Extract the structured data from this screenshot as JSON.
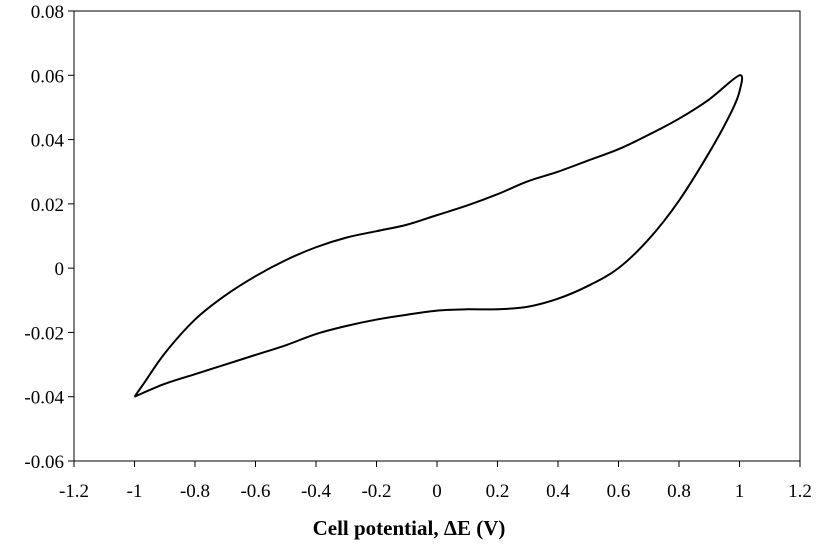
{
  "chart_data": {
    "type": "line",
    "title": "",
    "xlabel": "Cell potential, ΔE (V)",
    "ylabel": "",
    "xlim": [
      -1.2,
      1.2
    ],
    "ylim": [
      -0.06,
      0.08
    ],
    "x_ticks": [
      -1.2,
      -1,
      -0.8,
      -0.6,
      -0.4,
      -0.2,
      0,
      0.2,
      0.4,
      0.6,
      0.8,
      1,
      1.2
    ],
    "x_tick_labels": [
      "-1.2",
      "-1",
      "-0.8",
      "-0.6",
      "-0.4",
      "-0.2",
      "0",
      "0.2",
      "0.4",
      "0.6",
      "0.8",
      "1",
      "1.2"
    ],
    "y_ticks": [
      -0.06,
      -0.04,
      -0.02,
      0,
      0.02,
      0.04,
      0.06,
      0.08
    ],
    "y_tick_labels": [
      "-0.06",
      "-0.04",
      "-0.02",
      "0",
      "0.02",
      "0.04",
      "0.06",
      "0.08"
    ],
    "grid": false,
    "legend": "none",
    "series": [
      {
        "color": "#000000",
        "points": [
          [
            -1.0,
            -0.04
          ],
          [
            -0.9,
            -0.036
          ],
          [
            -0.8,
            -0.033
          ],
          [
            -0.7,
            -0.03
          ],
          [
            -0.6,
            -0.027
          ],
          [
            -0.5,
            -0.024
          ],
          [
            -0.4,
            -0.0205
          ],
          [
            -0.3,
            -0.018
          ],
          [
            -0.2,
            -0.016
          ],
          [
            -0.1,
            -0.0145
          ],
          [
            0.0,
            -0.0132
          ],
          [
            0.1,
            -0.0128
          ],
          [
            0.2,
            -0.0128
          ],
          [
            0.3,
            -0.012
          ],
          [
            0.4,
            -0.0095
          ],
          [
            0.5,
            -0.0055
          ],
          [
            0.6,
            0.0
          ],
          [
            0.7,
            0.009
          ],
          [
            0.8,
            0.021
          ],
          [
            0.9,
            0.036
          ],
          [
            0.97,
            0.048
          ],
          [
            1.0,
            0.055
          ],
          [
            1.0,
            0.06
          ],
          [
            0.9,
            0.0525
          ],
          [
            0.8,
            0.0465
          ],
          [
            0.7,
            0.0415
          ],
          [
            0.6,
            0.037
          ],
          [
            0.5,
            0.0335
          ],
          [
            0.4,
            0.03
          ],
          [
            0.3,
            0.027
          ],
          [
            0.2,
            0.023
          ],
          [
            0.1,
            0.0195
          ],
          [
            0.0,
            0.0165
          ],
          [
            -0.1,
            0.0135
          ],
          [
            -0.2,
            0.0115
          ],
          [
            -0.3,
            0.0095
          ],
          [
            -0.4,
            0.0065
          ],
          [
            -0.5,
            0.0025
          ],
          [
            -0.6,
            -0.0025
          ],
          [
            -0.7,
            -0.0085
          ],
          [
            -0.8,
            -0.016
          ],
          [
            -0.9,
            -0.0265
          ],
          [
            -0.97,
            -0.036
          ],
          [
            -1.0,
            -0.04
          ]
        ]
      }
    ]
  }
}
